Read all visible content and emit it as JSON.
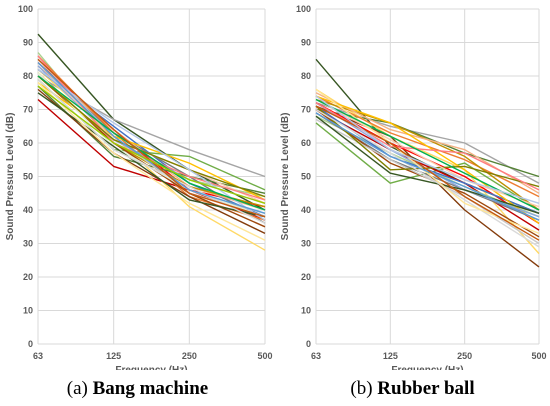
{
  "chart_data": [
    {
      "type": "line",
      "id": "a",
      "caption_prefix": "(a)",
      "caption_bold": "Bang machine",
      "xlabel": "Frequency (Hz)",
      "ylabel": "Sound Pressure Level (dB)",
      "categories": [
        "63",
        "125",
        "250",
        "500"
      ],
      "ylim": [
        0,
        100
      ],
      "yticks": [
        0,
        10,
        20,
        30,
        40,
        50,
        60,
        70,
        80,
        90,
        100
      ],
      "grid": true,
      "legend": "none",
      "series": [
        {
          "color": "#375623",
          "values": [
            92.5,
            67,
            52,
            40
          ]
        },
        {
          "color": "#a9d18e",
          "values": [
            87,
            60,
            49,
            44
          ]
        },
        {
          "color": "#c00000",
          "values": [
            73,
            53,
            46,
            37
          ]
        },
        {
          "color": "#a5a5a5",
          "values": [
            80,
            67,
            58,
            50
          ]
        },
        {
          "color": "#ff0000",
          "values": [
            84,
            64,
            46,
            41
          ]
        },
        {
          "color": "#ffd966",
          "values": [
            82,
            62,
            41,
            28
          ]
        },
        {
          "color": "#70ad47",
          "values": [
            79,
            58,
            56,
            46
          ]
        },
        {
          "color": "#4472c4",
          "values": [
            82,
            65,
            48,
            38
          ]
        },
        {
          "color": "#7b7b7b",
          "values": [
            84,
            63,
            50,
            36
          ]
        },
        {
          "color": "#f4b183",
          "values": [
            83,
            64,
            47,
            40
          ]
        },
        {
          "color": "#bf9000",
          "values": [
            81,
            60,
            47,
            41
          ]
        },
        {
          "color": "#548235",
          "values": [
            77,
            56,
            50,
            45
          ]
        },
        {
          "color": "#ed7d31",
          "values": [
            86,
            63,
            44,
            37
          ]
        },
        {
          "color": "#c9c9c9",
          "values": [
            85,
            62,
            45,
            39
          ]
        },
        {
          "color": "#9e480e",
          "values": [
            80,
            60,
            45,
            35
          ]
        },
        {
          "color": "#843c0c",
          "values": [
            76,
            57,
            44,
            33
          ]
        },
        {
          "color": "#ffc000",
          "values": [
            78,
            62,
            54,
            43
          ]
        },
        {
          "color": "#8faadc",
          "values": [
            83,
            61,
            49,
            42
          ]
        },
        {
          "color": "#e2f0d9",
          "values": [
            81,
            59,
            46,
            38
          ]
        },
        {
          "color": "#f8cbad",
          "values": [
            84,
            61,
            52,
            42
          ]
        },
        {
          "color": "#ff7c80",
          "values": [
            86,
            60,
            50,
            43
          ]
        },
        {
          "color": "#385723",
          "values": [
            75,
            59,
            43,
            38
          ]
        },
        {
          "color": "#808000",
          "values": [
            80,
            61,
            52,
            44
          ]
        },
        {
          "color": "#d9d9d9",
          "values": [
            79,
            58,
            47,
            36
          ]
        },
        {
          "color": "#ffe699",
          "values": [
            78,
            57,
            42,
            31
          ]
        },
        {
          "color": "#b4c7e7",
          "values": [
            82,
            66,
            52,
            37
          ]
        },
        {
          "color": "#5b9bd5",
          "values": [
            84,
            62,
            46,
            39
          ]
        },
        {
          "color": "#00b050",
          "values": [
            80,
            63,
            48,
            40
          ]
        },
        {
          "color": "#c55a11",
          "values": [
            85,
            64,
            45,
            38
          ]
        },
        {
          "color": "#99cc00",
          "values": [
            77,
            60,
            49,
            42
          ]
        }
      ]
    },
    {
      "type": "line",
      "id": "b",
      "caption_prefix": "(b)",
      "caption_bold": "Rubber ball",
      "xlabel": "Frequency (Hz)",
      "ylabel": "Sound Pressure Level (dB)",
      "categories": [
        "63",
        "125",
        "250",
        "500"
      ],
      "ylim": [
        0,
        100
      ],
      "yticks": [
        0,
        10,
        20,
        30,
        40,
        50,
        60,
        70,
        80,
        90,
        100
      ],
      "grid": true,
      "legend": "none",
      "series": [
        {
          "color": "#375623",
          "values": [
            85,
            59,
            48,
            39
          ]
        },
        {
          "color": "#843c0c",
          "values": [
            71,
            62,
            40,
            23
          ]
        },
        {
          "color": "#a5a5a5",
          "values": [
            72,
            65,
            60,
            48
          ]
        },
        {
          "color": "#70ad47",
          "values": [
            66,
            48,
            54,
            40
          ]
        },
        {
          "color": "#548235",
          "values": [
            70,
            66,
            57,
            50
          ]
        },
        {
          "color": "#ffd966",
          "values": [
            76,
            62,
            52,
            27
          ]
        },
        {
          "color": "#ff0000",
          "values": [
            72,
            60,
            50,
            36
          ]
        },
        {
          "color": "#c00000",
          "values": [
            70,
            58,
            48,
            34
          ]
        },
        {
          "color": "#ed7d31",
          "values": [
            74,
            63,
            55,
            44
          ]
        },
        {
          "color": "#a9d18e",
          "values": [
            68,
            57,
            47,
            38
          ]
        },
        {
          "color": "#bf9000",
          "values": [
            73,
            66,
            56,
            40
          ]
        },
        {
          "color": "#4472c4",
          "values": [
            71,
            56,
            48,
            39
          ]
        },
        {
          "color": "#7b7b7b",
          "values": [
            69,
            55,
            46,
            37
          ]
        },
        {
          "color": "#f4b183",
          "values": [
            75,
            64,
            58,
            45
          ]
        },
        {
          "color": "#9e480e",
          "values": [
            70,
            54,
            45,
            32
          ]
        },
        {
          "color": "#ffc000",
          "values": [
            74,
            66,
            52,
            36
          ]
        },
        {
          "color": "#c9c9c9",
          "values": [
            67,
            55,
            44,
            30
          ]
        },
        {
          "color": "#8faadc",
          "values": [
            72,
            58,
            46,
            38
          ]
        },
        {
          "color": "#808000",
          "values": [
            71,
            52,
            53,
            47
          ]
        },
        {
          "color": "#f8cbad",
          "values": [
            73,
            61,
            49,
            41
          ]
        },
        {
          "color": "#ff7c80",
          "values": [
            72,
            59,
            57,
            46
          ]
        },
        {
          "color": "#385723",
          "values": [
            68,
            51,
            46,
            39
          ]
        },
        {
          "color": "#d9d9d9",
          "values": [
            70,
            57,
            43,
            29
          ]
        },
        {
          "color": "#ffe699",
          "values": [
            76,
            60,
            42,
            33
          ]
        },
        {
          "color": "#5b9bd5",
          "values": [
            69,
            56,
            47,
            37
          ]
        },
        {
          "color": "#00b050",
          "values": [
            73,
            62,
            51,
            40
          ]
        },
        {
          "color": "#c55a11",
          "values": [
            71,
            60,
            44,
            31
          ]
        },
        {
          "color": "#b4c7e7",
          "values": [
            74,
            58,
            49,
            42
          ]
        }
      ]
    }
  ]
}
